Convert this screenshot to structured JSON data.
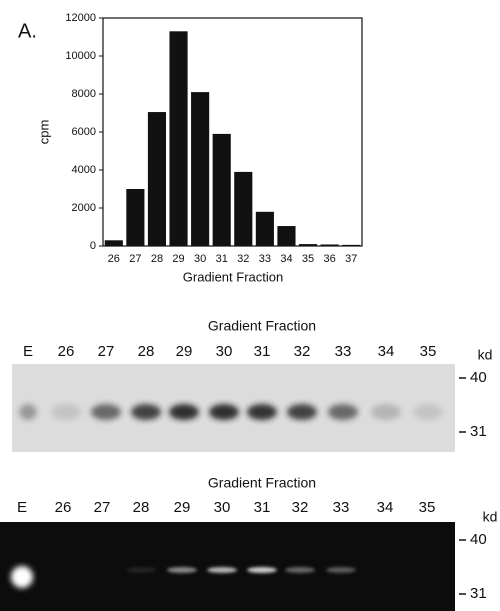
{
  "panel_label": "A.",
  "chart_data": {
    "type": "bar",
    "y_label": "cpm",
    "x_label": "Gradient Fraction",
    "categories": [
      "26",
      "27",
      "28",
      "29",
      "30",
      "31",
      "32",
      "33",
      "34",
      "35",
      "36",
      "37"
    ],
    "values": [
      300,
      3000,
      7050,
      11300,
      8100,
      5900,
      3900,
      1800,
      1050,
      100,
      80,
      60
    ],
    "color": "#111111",
    "ylim": [
      0,
      12000
    ],
    "yticks": [
      0,
      2000,
      4000,
      6000,
      8000,
      10000,
      12000
    ],
    "grid": false
  },
  "gels": [
    {
      "title": "Gradient Fraction",
      "lanes": [
        "E",
        "26",
        "27",
        "28",
        "29",
        "30",
        "31",
        "32",
        "33",
        "34",
        "35"
      ],
      "unit": "kd",
      "markers": [
        40,
        31
      ]
    },
    {
      "title": "Gradient Fraction",
      "lanes": [
        "E",
        "26",
        "27",
        "28",
        "29",
        "30",
        "31",
        "32",
        "33",
        "34",
        "35"
      ],
      "unit": "kd",
      "markers": [
        40,
        31
      ]
    }
  ]
}
